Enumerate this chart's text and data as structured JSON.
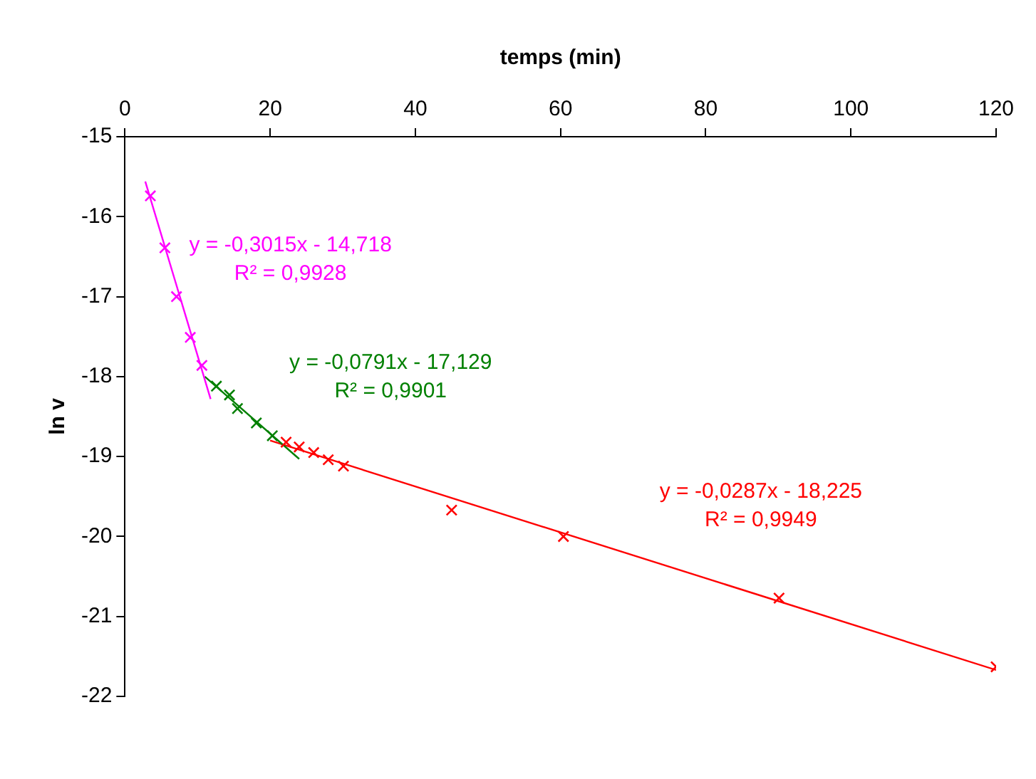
{
  "chart_data": {
    "type": "scatter",
    "xlabel": "temps (min)",
    "ylabel": "ln v",
    "xlim": [
      0,
      120
    ],
    "xticks": [
      0,
      20,
      40,
      60,
      80,
      100,
      120
    ],
    "ylim": [
      -22,
      -15
    ],
    "yticks": [
      -22,
      -21,
      -20,
      -19,
      -18,
      -17,
      -16,
      -15
    ],
    "grid": false,
    "legend": false,
    "marker": "cross",
    "series": [
      {
        "color": "#ff00ff",
        "x": [
          3.5,
          5.5,
          7.1,
          9.0,
          10.6
        ],
        "values": [
          -15.74,
          -16.39,
          -17.0,
          -17.51,
          -17.86
        ]
      },
      {
        "color": "#008000",
        "x": [
          12.6,
          14.4,
          15.5,
          18.1,
          20.3
        ],
        "values": [
          -18.12,
          -18.23,
          -18.4,
          -18.58,
          -18.74
        ]
      },
      {
        "color": "#ff0000",
        "x": [
          22.2,
          24,
          26,
          28,
          30.1,
          45,
          60.4,
          90.1,
          120
        ],
        "values": [
          -18.82,
          -18.88,
          -18.95,
          -19.04,
          -19.12,
          -19.67,
          -20.0,
          -20.77,
          -21.63
        ]
      },
      {
        "type": "line",
        "marker": "none",
        "color": "#ff00ff",
        "x": [
          2.8,
          11.8
        ],
        "values": [
          -15.56,
          -18.28
        ]
      },
      {
        "type": "line",
        "marker": "none",
        "color": "#008000",
        "x": [
          11,
          24
        ],
        "values": [
          -18.0,
          -19.03
        ]
      },
      {
        "type": "line",
        "marker": "none",
        "color": "#ff0000",
        "x": [
          20,
          120
        ],
        "values": [
          -18.8,
          -21.67
        ]
      }
    ],
    "annotations": [
      "y = -0,3015x - 14,718\nR² = 0,9928",
      "y = -0,0791x - 17,129\nR² = 0,9901",
      "y = -0,0287x - 18,225\nR² = 0,9949"
    ]
  }
}
